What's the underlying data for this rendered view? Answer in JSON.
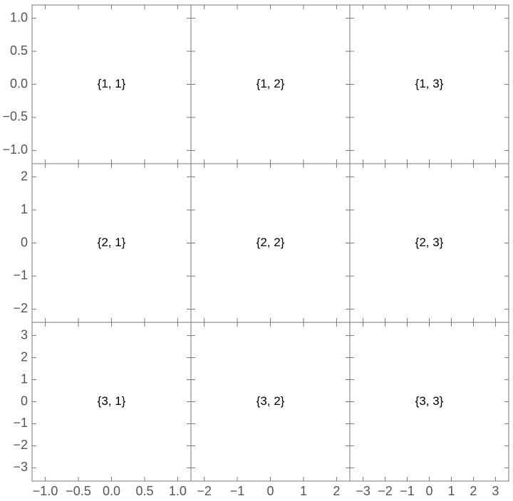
{
  "chart_data": [
    {
      "type": "frame",
      "label": "{1, 1}",
      "xlim": [
        -1.2,
        1.2
      ],
      "ylim": [
        -1.2,
        1.2
      ],
      "yticks": [
        {
          "value": -1,
          "label": "−1.0"
        },
        {
          "value": -0.5,
          "label": "−0.5"
        },
        {
          "value": 0,
          "label": "0.0"
        },
        0.5,
        {
          "value": 1,
          "label": "1.0"
        }
      ]
    },
    {
      "type": "frame",
      "label": "{1, 2}",
      "xlim": [
        -2.4,
        2.4
      ],
      "ylim": [
        -1.2,
        1.2
      ]
    },
    {
      "type": "frame",
      "label": "{1, 3}",
      "xlim": [
        -3.6,
        3.6
      ],
      "ylim": [
        -1.2,
        1.2
      ]
    },
    {
      "type": "frame",
      "label": "{2, 1}",
      "xlim": [
        -1.2,
        1.2
      ],
      "ylim": [
        -2.4,
        2.4
      ],
      "yticks": [
        {
          "value": -2,
          "label": "−2"
        },
        {
          "value": -1,
          "label": "−1"
        },
        0,
        1,
        2
      ]
    },
    {
      "type": "frame",
      "label": "{2, 2}",
      "xlim": [
        -2.4,
        2.4
      ],
      "ylim": [
        -2.4,
        2.4
      ]
    },
    {
      "type": "frame",
      "label": "{2, 3}",
      "xlim": [
        -3.6,
        3.6
      ],
      "ylim": [
        -2.4,
        2.4
      ]
    },
    {
      "type": "frame",
      "label": "{3, 1}",
      "xlim": [
        -1.2,
        1.2
      ],
      "ylim": [
        -3.6,
        3.6
      ],
      "xticks": [
        {
          "value": -1,
          "label": "−1.0"
        },
        {
          "value": -0.5,
          "label": "−0.5"
        },
        {
          "value": 0,
          "label": "0.0"
        },
        0.5,
        {
          "value": 1,
          "label": "1.0"
        }
      ],
      "yticks": [
        {
          "value": -3,
          "label": "−3"
        },
        {
          "value": -2,
          "label": "−2"
        },
        {
          "value": -1,
          "label": "−1"
        },
        0,
        1,
        2,
        3
      ]
    },
    {
      "type": "frame",
      "label": "{3, 2}",
      "xlim": [
        -2.4,
        2.4
      ],
      "ylim": [
        -3.6,
        3.6
      ],
      "xticks": [
        {
          "value": -2,
          "label": "−2"
        },
        {
          "value": -1,
          "label": "−1"
        },
        0,
        1,
        2
      ]
    },
    {
      "type": "frame",
      "label": "{3, 3}",
      "xlim": [
        -3.6,
        3.6
      ],
      "ylim": [
        -3.6,
        3.6
      ],
      "xticks": [
        {
          "value": -3,
          "label": "−3"
        },
        {
          "value": -2,
          "label": "−2"
        },
        {
          "value": -1,
          "label": "−1"
        },
        0,
        1,
        2,
        3
      ]
    }
  ]
}
